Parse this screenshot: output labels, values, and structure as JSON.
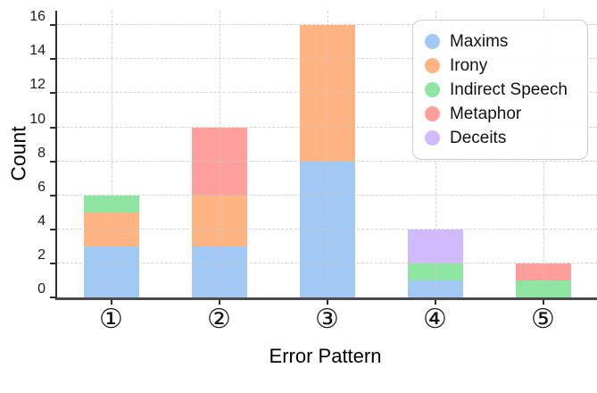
{
  "chart_data": {
    "type": "bar",
    "stacked": true,
    "categories": [
      "①",
      "②",
      "③",
      "④",
      "⑤"
    ],
    "series": [
      {
        "name": "Maxims",
        "color": "#a1c9f4",
        "values": [
          3,
          3,
          8,
          1,
          0
        ]
      },
      {
        "name": "Irony",
        "color": "#ffb482",
        "values": [
          2,
          3,
          8,
          0,
          0
        ]
      },
      {
        "name": "Indirect Speech",
        "color": "#8de5a1",
        "values": [
          1,
          0,
          0,
          1,
          1
        ]
      },
      {
        "name": "Metaphor",
        "color": "#ff9f9b",
        "values": [
          0,
          4,
          0,
          0,
          1
        ]
      },
      {
        "name": "Deceits",
        "color": "#d0bbff",
        "values": [
          0,
          0,
          0,
          2,
          0
        ]
      }
    ],
    "totals": [
      6,
      10,
      16,
      4,
      2
    ],
    "title": "",
    "xlabel": "Error Pattern",
    "ylabel": "Count",
    "ylim": [
      0,
      16.85
    ],
    "yticks": [
      0,
      2,
      4,
      6,
      8,
      10,
      12,
      14,
      16
    ],
    "grid": true,
    "grid_style": "dashed",
    "legend_position": "upper right"
  }
}
